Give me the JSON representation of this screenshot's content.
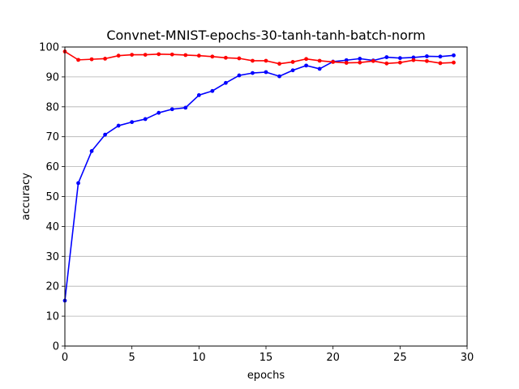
{
  "chart_data": {
    "type": "line",
    "title": "Convnet-MNIST-epochs-30-tanh-tanh-batch-norm",
    "xlabel": "epochs",
    "ylabel": "accuracy",
    "xlim": [
      0,
      30
    ],
    "ylim": [
      0,
      100
    ],
    "x_ticks": [
      0,
      5,
      10,
      15,
      20,
      25,
      30
    ],
    "y_ticks": [
      0,
      10,
      20,
      30,
      40,
      50,
      60,
      70,
      80,
      90,
      100
    ],
    "grid": "horizontal",
    "x": [
      0,
      1,
      2,
      3,
      4,
      5,
      6,
      7,
      8,
      9,
      10,
      11,
      12,
      13,
      14,
      15,
      16,
      17,
      18,
      19,
      20,
      21,
      22,
      23,
      24,
      25,
      26,
      27,
      28,
      29
    ],
    "series": [
      {
        "color": "#0000ff",
        "values": [
          15.2,
          54.5,
          65.2,
          70.7,
          73.7,
          74.9,
          75.9,
          78.0,
          79.2,
          79.7,
          83.9,
          85.3,
          88.0,
          90.5,
          91.3,
          91.6,
          90.2,
          92.2,
          93.8,
          92.7,
          95.1,
          95.6,
          96.1,
          95.5,
          96.6,
          96.3,
          96.5,
          96.9,
          96.8,
          97.2
        ]
      },
      {
        "color": "#ff0000",
        "values": [
          98.5,
          95.7,
          95.9,
          96.1,
          97.1,
          97.4,
          97.4,
          97.6,
          97.5,
          97.3,
          97.1,
          96.8,
          96.4,
          96.2,
          95.4,
          95.4,
          94.4,
          95.0,
          96.0,
          95.4,
          95.0,
          94.7,
          94.8,
          95.3,
          94.5,
          94.8,
          95.6,
          95.3,
          94.6,
          94.8
        ]
      }
    ]
  }
}
